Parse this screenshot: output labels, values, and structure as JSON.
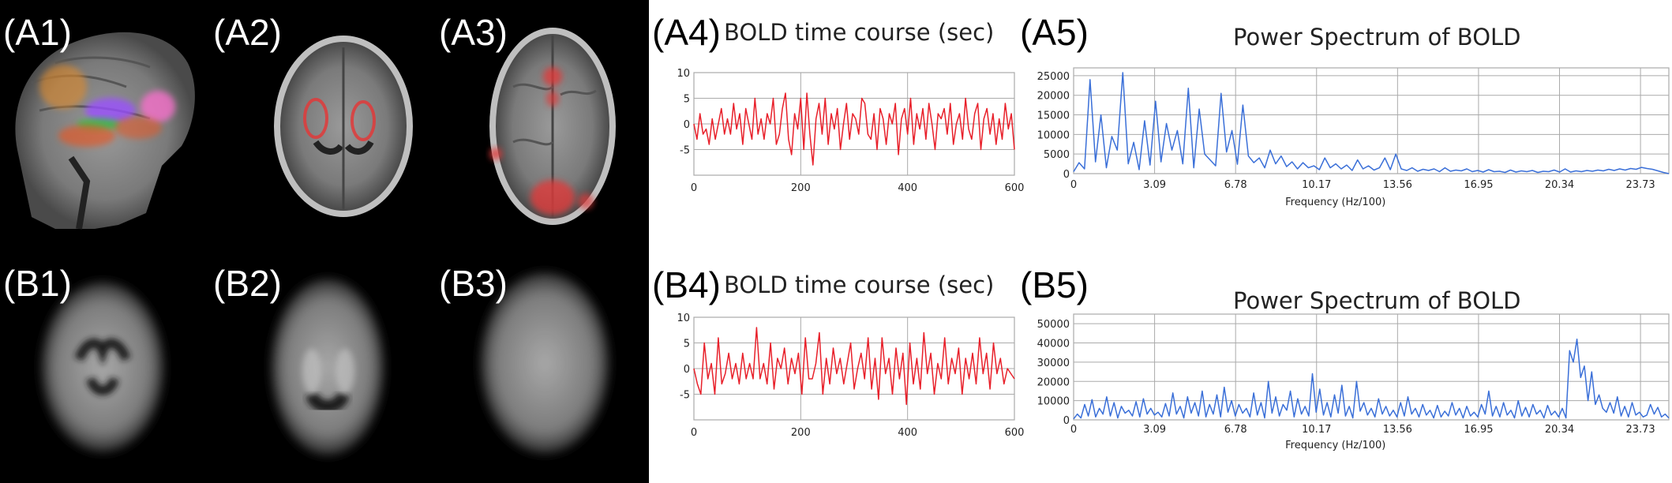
{
  "panels": {
    "A1": "(A1)",
    "A2": "(A2)",
    "A3": "(A3)",
    "A4": "(A4)",
    "A5": "(A5)",
    "B1": "(B1)",
    "B2": "(B2)",
    "B3": "(B3)",
    "B4": "(B4)",
    "B5": "(B5)"
  },
  "colors": {
    "bold_line": "#e8202a",
    "spectrum_line": "#3a6fd8",
    "grid": "#aaaaaa",
    "activation": "#e03a3a"
  },
  "chart_data": [
    {
      "id": "A4",
      "type": "line",
      "title": "BOLD time course (sec)",
      "xlabel": "",
      "ylabel": "",
      "xlim": [
        0,
        600
      ],
      "ylim": [
        -10,
        10
      ],
      "xticks": [
        "0",
        "200",
        "400",
        "600"
      ],
      "yticks": [
        "10",
        "5",
        "0",
        "-5"
      ],
      "grid": true,
      "series": [
        {
          "values": [
            0,
            -3,
            2,
            -2,
            -1,
            -4,
            1,
            -3,
            0,
            3,
            -2,
            1,
            -2,
            4,
            -1,
            2,
            -4,
            3,
            0,
            -3,
            5,
            -2,
            1,
            -3,
            2,
            0,
            5,
            -4,
            -2,
            3,
            6,
            -3,
            -6,
            2,
            -1,
            5,
            -5,
            6,
            -2,
            -8,
            1,
            4,
            -2,
            5,
            -4,
            2,
            -1,
            3,
            -5,
            0,
            4,
            -3,
            2,
            1,
            -2,
            5,
            4,
            -2,
            -3,
            2,
            -5,
            3,
            1,
            -4,
            2,
            0,
            4,
            -6,
            1,
            3,
            -2,
            5,
            -4,
            2,
            -1,
            3,
            -3,
            4,
            0,
            -5,
            2,
            1,
            3,
            -2,
            4,
            -4,
            0,
            2,
            -3,
            5,
            -1,
            -3,
            2,
            4,
            -5,
            1,
            3,
            -2,
            2,
            -4,
            1,
            -3,
            4,
            -1,
            2,
            -5
          ]
        }
      ]
    },
    {
      "id": "A5",
      "type": "line",
      "title": "Power Spectrum of BOLD",
      "xlabel": "Frequency (Hz/100)",
      "ylabel": "",
      "xlim": [
        0,
        25
      ],
      "ylim": [
        0,
        27000
      ],
      "xticks": [
        "0",
        "3.09",
        "6.78",
        "10.17",
        "13.56",
        "16.95",
        "20.34",
        "23.73"
      ],
      "yticks": [
        "25000",
        "20000",
        "15000",
        "10000",
        "5000",
        "0"
      ],
      "grid": true,
      "series": [
        {
          "values": [
            500,
            2800,
            1200,
            24000,
            3000,
            15000,
            1500,
            9500,
            6000,
            25800,
            2500,
            8000,
            1000,
            13500,
            2200,
            18500,
            3000,
            12800,
            6000,
            11000,
            2500,
            21800,
            1500,
            16500,
            5000,
            3500,
            2000,
            20500,
            5500,
            11000,
            2400,
            17500,
            4500,
            2800,
            4000,
            1500,
            6000,
            2500,
            4500,
            1800,
            3000,
            1200,
            2800,
            1500,
            2000,
            1000,
            4000,
            1500,
            2500,
            1200,
            2200,
            800,
            3500,
            1200,
            2000,
            900,
            1500,
            4000,
            1000,
            5000,
            1200,
            800,
            1500,
            600,
            1100,
            800,
            1200,
            500,
            1500,
            600,
            900,
            700,
            1200,
            500,
            800,
            400,
            1000,
            500,
            600,
            300,
            900,
            400,
            700,
            500,
            800,
            300,
            600,
            500,
            900,
            400,
            1200,
            400,
            700,
            500,
            800,
            600,
            900,
            700,
            1100,
            800,
            1200,
            900,
            1300,
            1100,
            1600,
            1300,
            1100,
            700,
            300,
            0
          ]
        }
      ]
    },
    {
      "id": "B4",
      "type": "line",
      "title": "BOLD time course (sec)",
      "xlabel": "",
      "ylabel": "",
      "xlim": [
        0,
        600
      ],
      "ylim": [
        -10,
        10
      ],
      "xticks": [
        "0",
        "200",
        "400",
        "600"
      ],
      "yticks": [
        "10",
        "5",
        "0",
        "-5"
      ],
      "grid": true,
      "series": [
        {
          "values": [
            0,
            -3,
            -5,
            5,
            -2,
            1,
            -5,
            6,
            -3,
            -1,
            3,
            -2,
            1,
            -3,
            3,
            -2,
            1,
            -2,
            8,
            -2,
            1,
            -3,
            5,
            -4,
            2,
            0,
            4,
            -3,
            2,
            -1,
            3,
            -5,
            6,
            -2,
            -2,
            1,
            7,
            -5,
            2,
            -3,
            4,
            -1,
            2,
            -3,
            1,
            5,
            -4,
            0,
            3,
            -2,
            6,
            -4,
            2,
            -6,
            6,
            -1,
            2,
            -5,
            4,
            -2,
            3,
            -7,
            5,
            -3,
            2,
            -4,
            7,
            -1,
            3,
            -5,
            1,
            -2,
            6,
            -3,
            2,
            -1,
            4,
            -5,
            2,
            -2,
            3,
            -3,
            6,
            -1,
            3,
            -4,
            5,
            -1,
            2,
            -3,
            0,
            -1,
            -2
          ]
        }
      ]
    },
    {
      "id": "B5",
      "type": "line",
      "title": "Power Spectrum of BOLD",
      "xlabel": "Frequency (Hz/100)",
      "ylabel": "",
      "xlim": [
        0,
        25
      ],
      "ylim": [
        0,
        55000
      ],
      "xticks": [
        "0",
        "3.09",
        "6.78",
        "10.17",
        "13.56",
        "16.95",
        "20.34",
        "23.73"
      ],
      "yticks": [
        "50000",
        "40000",
        "30000",
        "20000",
        "10000",
        "0"
      ],
      "grid": true,
      "series": [
        {
          "values": [
            500,
            3000,
            1000,
            8000,
            2000,
            10500,
            1500,
            6000,
            3000,
            12000,
            2000,
            9000,
            1000,
            7000,
            3500,
            5000,
            2000,
            9500,
            1500,
            11000,
            3000,
            6000,
            2500,
            4000,
            1500,
            8500,
            2000,
            14000,
            3000,
            7000,
            1000,
            12000,
            3500,
            9000,
            2000,
            15000,
            1500,
            8000,
            3000,
            13000,
            1500,
            17000,
            4000,
            10000,
            2000,
            8000,
            3500,
            6000,
            1500,
            14000,
            2500,
            9000,
            1000,
            20000,
            3500,
            12000,
            2000,
            8000,
            5000,
            15000,
            1500,
            11000,
            3000,
            7000,
            2000,
            24000,
            4000,
            16000,
            2500,
            9000,
            1500,
            13000,
            3500,
            18000,
            2000,
            7000,
            1000,
            20000,
            4500,
            9000,
            2500,
            6000,
            1500,
            11000,
            3000,
            7000,
            2000,
            5000,
            1500,
            9000,
            2000,
            12000,
            3000,
            6000,
            1500,
            8000,
            2500,
            5000,
            1000,
            7500,
            1500,
            4500,
            2000,
            9000,
            2500,
            6000,
            1000,
            7000,
            2000,
            4000,
            1500,
            8000,
            3000,
            15000,
            2000,
            7000,
            1500,
            9000,
            2500,
            5000,
            1000,
            10000,
            2000,
            6500,
            1500,
            8000,
            3000,
            5000,
            1000,
            7500,
            2500,
            4500,
            1500,
            6000,
            1000,
            36000,
            30000,
            42000,
            22000,
            28000,
            10000,
            25000,
            8000,
            13000,
            6000,
            4000,
            9000,
            3500,
            12000,
            2000,
            7000,
            1500,
            9000,
            2500,
            4000,
            1500,
            2500,
            8000,
            3000,
            6500,
            1500,
            3000,
            1000
          ]
        }
      ]
    }
  ]
}
